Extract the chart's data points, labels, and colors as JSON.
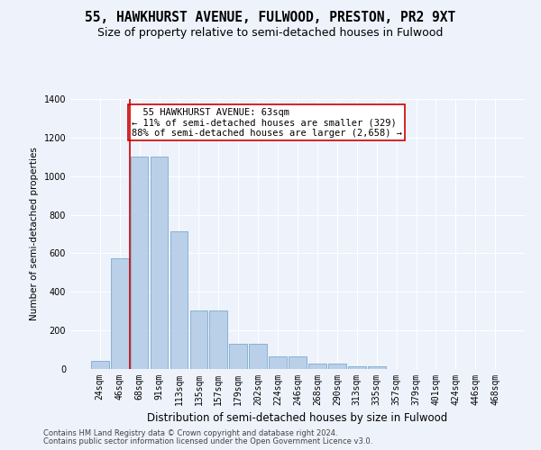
{
  "title": "55, HAWKHURST AVENUE, FULWOOD, PRESTON, PR2 9XT",
  "subtitle": "Size of property relative to semi-detached houses in Fulwood",
  "xlabel": "Distribution of semi-detached houses by size in Fulwood",
  "ylabel": "Number of semi-detached properties",
  "footer1": "Contains HM Land Registry data © Crown copyright and database right 2024.",
  "footer2": "Contains public sector information licensed under the Open Government Licence v3.0.",
  "categories": [
    "24sqm",
    "46sqm",
    "68sqm",
    "91sqm",
    "113sqm",
    "135sqm",
    "157sqm",
    "179sqm",
    "202sqm",
    "224sqm",
    "246sqm",
    "268sqm",
    "290sqm",
    "313sqm",
    "335sqm",
    "357sqm",
    "379sqm",
    "401sqm",
    "424sqm",
    "446sqm",
    "468sqm"
  ],
  "values": [
    40,
    575,
    1100,
    1100,
    715,
    305,
    305,
    130,
    130,
    65,
    65,
    30,
    30,
    15,
    15,
    0,
    0,
    0,
    0,
    0,
    0
  ],
  "bar_color": "#bad0e8",
  "bar_edgecolor": "#6a9fc8",
  "vline_x": 1.5,
  "vline_color": "#cc0000",
  "annotation_text": "  55 HAWKHURST AVENUE: 63sqm\n← 11% of semi-detached houses are smaller (329)\n88% of semi-detached houses are larger (2,658) →",
  "annotation_box_color": "#ffffff",
  "annotation_border_color": "#cc0000",
  "ylim": [
    0,
    1400
  ],
  "yticks": [
    0,
    200,
    400,
    600,
    800,
    1000,
    1200,
    1400
  ],
  "background_color": "#eef2fb",
  "plot_background": "#eef2fb",
  "grid_color": "#ffffff",
  "title_fontsize": 10.5,
  "subtitle_fontsize": 9,
  "xlabel_fontsize": 8.5,
  "ylabel_fontsize": 7.5,
  "tick_fontsize": 7,
  "footer_fontsize": 6,
  "ann_fontsize": 7.5
}
